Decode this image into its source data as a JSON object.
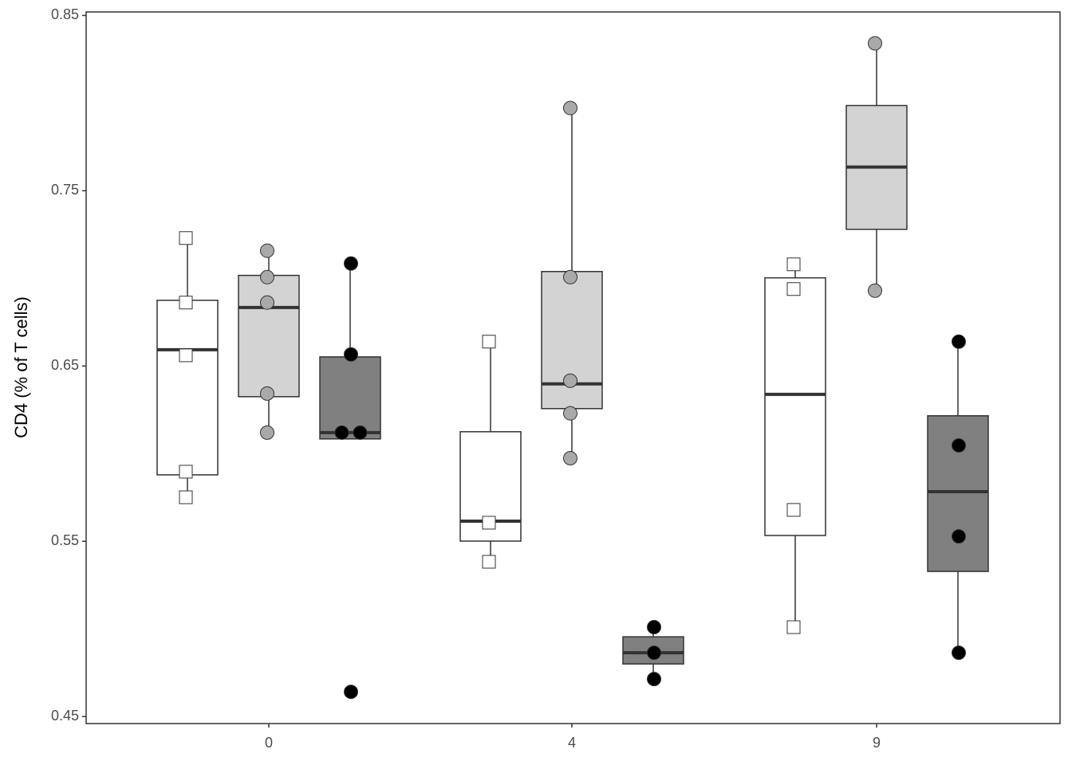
{
  "chart_data": {
    "type": "box",
    "ylabel": "CD4 (% of T cells)",
    "categories": [
      "0",
      "4",
      "9"
    ],
    "ylim": [
      0.446,
      0.852
    ],
    "yticks": [
      0.45,
      0.55,
      0.65,
      0.75,
      0.85
    ],
    "grid": false,
    "series": [
      {
        "color": "#ffffff",
        "point_color": "#ffffff",
        "marker": "square",
        "boxes": [
          {
            "whisker_low": 0.5751,
            "q1": 0.5879,
            "median": 0.6593,
            "q3": 0.6875,
            "whisker_high": 0.723,
            "points": [
              0.723,
              0.6862,
              0.6561,
              0.5897,
              0.5751
            ]
          },
          {
            "whisker_low": 0.5383,
            "q1": 0.5501,
            "median": 0.5615,
            "q3": 0.6125,
            "whisker_high": 0.6639,
            "points": [
              0.6639,
              0.5606,
              0.5383
            ]
          },
          {
            "whisker_low": 0.501,
            "q1": 0.5533,
            "median": 0.6338,
            "q3": 0.7003,
            "whisker_high": 0.708,
            "points": [
              0.708,
              0.6939,
              0.5679,
              0.501
            ]
          }
        ]
      },
      {
        "color": "#d3d3d3",
        "point_color": "#a9a9a9",
        "marker": "circle",
        "boxes": [
          {
            "whisker_low": 0.612,
            "q1": 0.6325,
            "median": 0.6834,
            "q3": 0.7017,
            "whisker_high": 0.7158,
            "points": [
              0.7158,
              0.7007,
              0.6862,
              0.6343,
              0.612
            ]
          },
          {
            "whisker_low": 0.5974,
            "q1": 0.6257,
            "median": 0.6398,
            "q3": 0.7039,
            "whisker_high": 0.7972,
            "points": [
              0.7972,
              0.7007,
              0.6416,
              0.623,
              0.5974
            ]
          },
          {
            "whisker_low": 0.693,
            "q1": 0.728,
            "median": 0.7635,
            "q3": 0.7986,
            "whisker_high": 0.8341,
            "points": [
              0.8341,
              0.693
            ]
          }
        ]
      },
      {
        "color": "#808080",
        "point_color": "#000000",
        "marker": "circle",
        "boxes": [
          {
            "whisker_low": 0.6084,
            "q1": 0.6084,
            "median": 0.612,
            "q3": 0.6552,
            "whisker_high": 0.7085,
            "points": [
              0.7085,
              0.6566,
              0.612,
              0.612,
              0.4641
            ]
          },
          {
            "whisker_low": 0.4714,
            "q1": 0.48,
            "median": 0.4864,
            "q3": 0.4955,
            "whisker_high": 0.501,
            "points": [
              0.501,
              0.4864,
              0.4714
            ]
          },
          {
            "whisker_low": 0.4864,
            "q1": 0.5328,
            "median": 0.5783,
            "q3": 0.6216,
            "whisker_high": 0.6639,
            "points": [
              0.6639,
              0.6047,
              0.5528,
              0.4864
            ]
          }
        ]
      }
    ]
  }
}
